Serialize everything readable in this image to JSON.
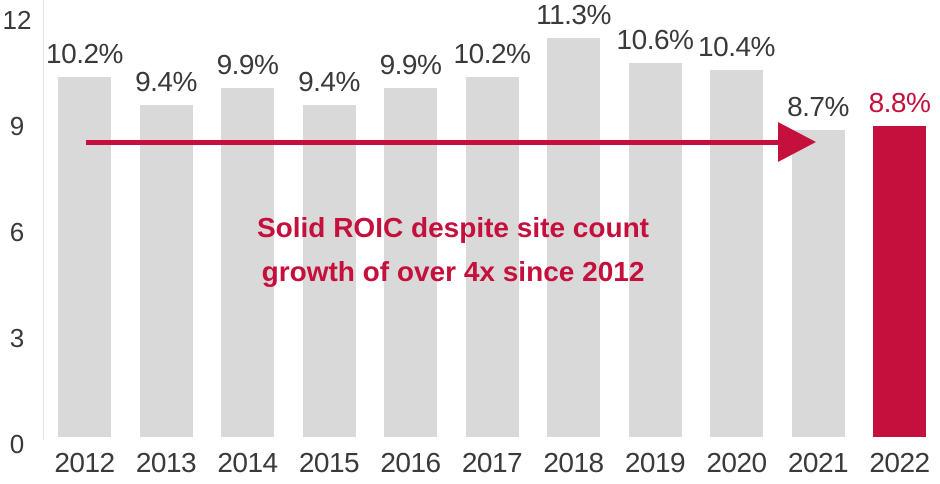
{
  "chart_data": {
    "type": "bar",
    "title": "",
    "xlabel": "",
    "ylabel": "",
    "ylim": [
      0,
      12
    ],
    "yticks": [
      0,
      3,
      6,
      9,
      12
    ],
    "grid": false,
    "categories": [
      "2012",
      "2013",
      "2014",
      "2015",
      "2016",
      "2017",
      "2018",
      "2019",
      "2020",
      "2021",
      "2022"
    ],
    "values": [
      10.2,
      9.4,
      9.9,
      9.4,
      9.9,
      10.2,
      11.3,
      10.6,
      10.4,
      8.7,
      8.8
    ],
    "value_labels": [
      "10.2%",
      "9.4%",
      "9.9%",
      "9.4%",
      "9.9%",
      "10.2%",
      "11.3%",
      "10.6%",
      "10.4%",
      "8.7%",
      "8.8%"
    ],
    "highlight_index": 10,
    "annotations": [
      {
        "text": "Solid ROIC despite site count growth of over 4x since 2012",
        "type": "arrow",
        "from": "2012",
        "to": "2021"
      }
    ],
    "colors": {
      "bar": "#d9d9d9",
      "highlight": "#c50f3c",
      "text": "#3a3a3a"
    }
  },
  "annotation": {
    "line1": "Solid ROIC despite site count",
    "line2": "growth of over 4x since 2012"
  }
}
